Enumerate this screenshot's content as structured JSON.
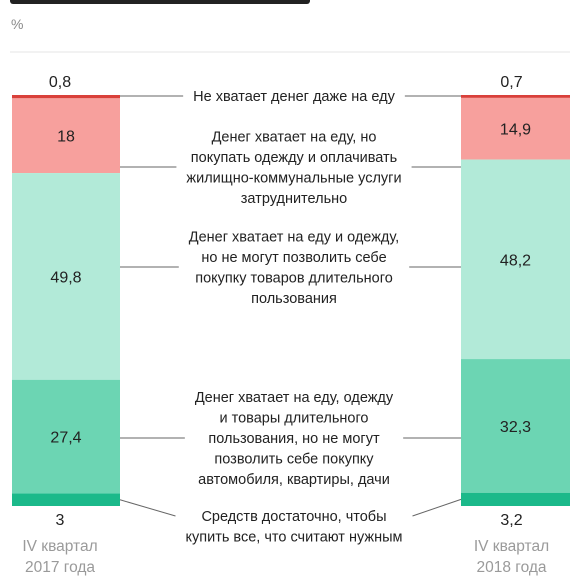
{
  "unit_label": "%",
  "chart_data": {
    "type": "bar",
    "stacked": true,
    "normalized": true,
    "categories": [
      "IV квартал 2017 года",
      "IV квартал 2018 года"
    ],
    "category_lines": [
      [
        "IV квартал",
        "2017 года"
      ],
      [
        "IV квартал",
        "2018 года"
      ]
    ],
    "series": [
      {
        "name": "Не хватает денег даже на еду",
        "label_lines": [
          "Не хватает денег даже на еду"
        ],
        "color": "#d9403a",
        "values": [
          0.8,
          0.7
        ],
        "value_labels": [
          "0,8",
          "0,7"
        ]
      },
      {
        "name": "Денег хватает на еду, но покупать одежду и оплачивать жилищно-коммунальные услуги затруднительно",
        "label_lines": [
          "Денег хватает на еду, но",
          "покупать одежду и оплачивать",
          "жилищно-коммунальные услуги",
          "затруднительно"
        ],
        "color": "#f7a09d",
        "values": [
          18,
          14.9
        ],
        "value_labels": [
          "18",
          "14,9"
        ]
      },
      {
        "name": "Денег хватает на еду и одежду, но не могут позволить себе покупку товаров длительного пользования",
        "label_lines": [
          "Денег хватает на еду и одежду,",
          "но не могут позволить себе",
          "покупку товаров длительного",
          "пользования"
        ],
        "color": "#b2ead8",
        "values": [
          49.8,
          48.2
        ],
        "value_labels": [
          "49,8",
          "48,2"
        ]
      },
      {
        "name": "Денег хватает на еду, одежду и товары длительного пользования, но не могут позволить себе покупку автомобиля, квартиры, дачи",
        "label_lines": [
          "Денег хватает на еду, одежду",
          "и товары длительного",
          "пользования, но не могут",
          "позволить себе покупку",
          "автомобиля, квартиры, дачи"
        ],
        "color": "#6cd5b3",
        "values": [
          27.4,
          32.3
        ],
        "value_labels": [
          "27,4",
          "32,3"
        ]
      },
      {
        "name": "Средств достаточно, чтобы купить все, что считают нужным",
        "label_lines": [
          "Средств достаточно, чтобы",
          "купить все, что считают нужным"
        ],
        "color": "#1bb98a",
        "values": [
          3,
          3.2
        ],
        "value_labels": [
          "3",
          "3,2"
        ]
      }
    ]
  }
}
